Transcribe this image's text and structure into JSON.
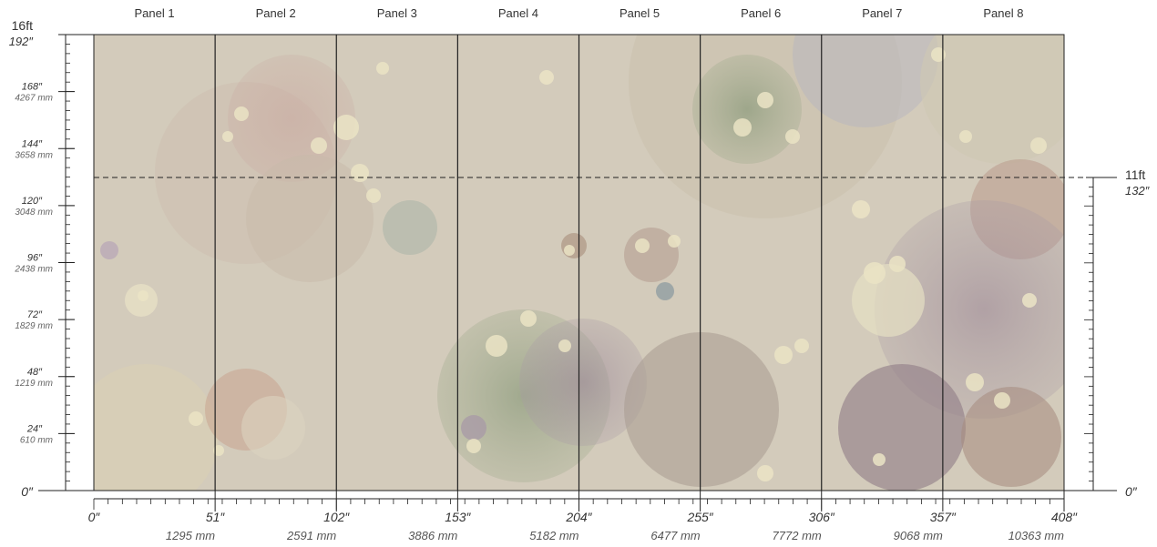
{
  "panels": [
    "Panel 1",
    "Panel 2",
    "Panel 3",
    "Panel 4",
    "Panel 5",
    "Panel 6",
    "Panel 7",
    "Panel 8"
  ],
  "colors": {
    "wall_base": "#d3cbbb",
    "divider": "#222222",
    "bubble_cream": "#ece6c8",
    "bubble_rose": "#c8ada8",
    "bubble_sage": "#b9bca0",
    "bubble_plum": "#a99aa5",
    "bubble_green": "#8fa07e",
    "bubble_brown": "#a88d72"
  },
  "left_scale": {
    "top_major": "16ft",
    "top_major_sub": "192″",
    "bottom": "0″",
    "marks": [
      {
        "inch": "168″",
        "mm": "4267 mm"
      },
      {
        "inch": "144″",
        "mm": "3658 mm"
      },
      {
        "inch": "120″",
        "mm": "3048 mm"
      },
      {
        "inch": "96″",
        "mm": "2438 mm"
      },
      {
        "inch": "72″",
        "mm": "1829 mm"
      },
      {
        "inch": "48″",
        "mm": "1219 mm"
      },
      {
        "inch": "24″",
        "mm": "610 mm"
      }
    ]
  },
  "right_scale": {
    "top": "11ft",
    "top_sub": "132″",
    "bottom": "0″"
  },
  "bottom_scale": {
    "start": "0″",
    "marks": [
      {
        "inch": "51″",
        "mm": "1295 mm"
      },
      {
        "inch": "102″",
        "mm": "2591 mm"
      },
      {
        "inch": "153″",
        "mm": "3886 mm"
      },
      {
        "inch": "204″",
        "mm": "5182 mm"
      },
      {
        "inch": "255″",
        "mm": "6477 mm"
      },
      {
        "inch": "306″",
        "mm": "7772 mm"
      },
      {
        "inch": "357″",
        "mm": "9068 mm"
      },
      {
        "inch": "408″",
        "mm": "10363 mm"
      }
    ]
  }
}
